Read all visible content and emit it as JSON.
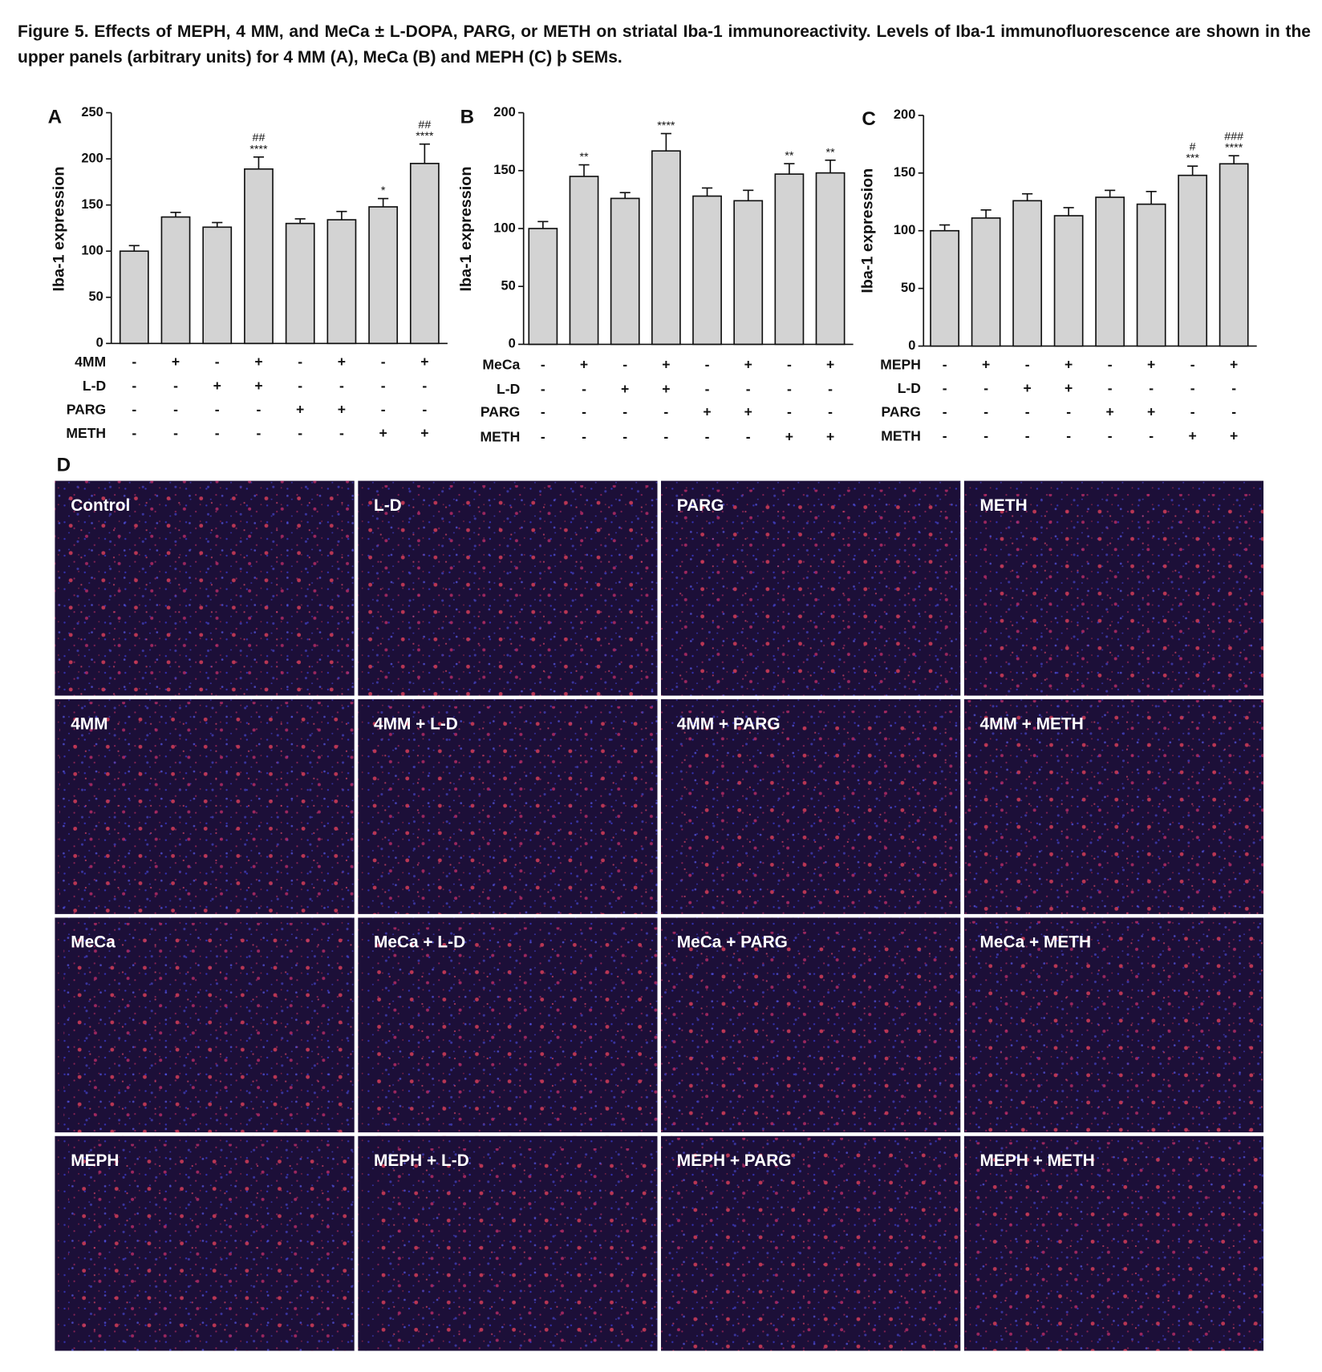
{
  "caption": "Figure 5. Effects of MEPH, 4 MM, and MeCa ± L-DOPA, PARG, or METH on striatal Iba-1 immunoreactivity. Levels of Iba-1 immunofluorescence are shown in the upper panels (arbitrary units) for 4 MM (A), MeCa (B) and MEPH (C) þ SEMs.",
  "chart_data": [
    {
      "type": "bar",
      "panel": "A",
      "ylabel": "Iba-1 expression",
      "color": "#d3d3d3",
      "values": [
        100,
        137,
        126,
        189,
        130,
        134,
        148,
        195
      ],
      "errors": [
        6,
        5,
        5,
        13,
        5,
        9,
        9,
        21
      ],
      "annotations": [
        null,
        null,
        null,
        [
          "##",
          "****"
        ],
        null,
        null,
        [
          "*"
        ],
        [
          "##",
          "****"
        ]
      ],
      "ylim": [
        0,
        250
      ],
      "yticks": [
        0,
        50,
        100,
        150,
        200,
        250
      ],
      "conditions": [
        {
          "name": "4MM",
          "marks": [
            "-",
            "+",
            "-",
            "+",
            "-",
            "+",
            "-",
            "+"
          ]
        },
        {
          "name": "L-D",
          "marks": [
            "-",
            "-",
            "+",
            "+",
            "-",
            "-",
            "-",
            "-"
          ]
        },
        {
          "name": "PARG",
          "marks": [
            "-",
            "-",
            "-",
            "-",
            "+",
            "+",
            "-",
            "-"
          ]
        },
        {
          "name": "METH",
          "marks": [
            "-",
            "-",
            "-",
            "-",
            "-",
            "-",
            "+",
            "+"
          ]
        }
      ]
    },
    {
      "type": "bar",
      "panel": "B",
      "ylabel": "Iba-1 expression",
      "color": "#d3d3d3",
      "values": [
        100,
        145,
        126,
        167,
        128,
        124,
        147,
        148
      ],
      "errors": [
        6,
        10,
        5,
        15,
        7,
        9,
        9,
        11
      ],
      "annotations": [
        null,
        [
          "**"
        ],
        null,
        [
          "****"
        ],
        null,
        null,
        [
          "**"
        ],
        [
          "**"
        ]
      ],
      "ylim": [
        0,
        200
      ],
      "yticks": [
        0,
        50,
        100,
        150,
        200
      ],
      "conditions": [
        {
          "name": "MeCa",
          "marks": [
            "-",
            "+",
            "-",
            "+",
            "-",
            "+",
            "-",
            "+"
          ]
        },
        {
          "name": "L-D",
          "marks": [
            "-",
            "-",
            "+",
            "+",
            "-",
            "-",
            "-",
            "-"
          ]
        },
        {
          "name": "PARG",
          "marks": [
            "-",
            "-",
            "-",
            "-",
            "+",
            "+",
            "-",
            "-"
          ]
        },
        {
          "name": "METH",
          "marks": [
            "-",
            "-",
            "-",
            "-",
            "-",
            "-",
            "+",
            "+"
          ]
        }
      ]
    },
    {
      "type": "bar",
      "panel": "C",
      "ylabel": "Iba-1 expression",
      "color": "#d3d3d3",
      "values": [
        100,
        111,
        126,
        113,
        129,
        123,
        148,
        158
      ],
      "errors": [
        5,
        7,
        6,
        7,
        6,
        11,
        8,
        7
      ],
      "annotations": [
        null,
        null,
        null,
        null,
        null,
        null,
        [
          "#",
          "***"
        ],
        [
          "###",
          "****"
        ]
      ],
      "ylim": [
        0,
        200
      ],
      "yticks": [
        0,
        50,
        100,
        150,
        200
      ],
      "conditions": [
        {
          "name": "MEPH",
          "marks": [
            "-",
            "+",
            "-",
            "+",
            "-",
            "+",
            "-",
            "+"
          ]
        },
        {
          "name": "L-D",
          "marks": [
            "-",
            "-",
            "+",
            "+",
            "-",
            "-",
            "-",
            "-"
          ]
        },
        {
          "name": "PARG",
          "marks": [
            "-",
            "-",
            "-",
            "-",
            "+",
            "+",
            "-",
            "-"
          ]
        },
        {
          "name": "METH",
          "marks": [
            "-",
            "-",
            "-",
            "-",
            "-",
            "-",
            "+",
            "+"
          ]
        }
      ]
    }
  ],
  "micrographs": {
    "label": "D",
    "panels": [
      "Control",
      "L-D",
      "PARG",
      "METH",
      "4MM",
      "4MM + L-D",
      "4MM + PARG",
      "4MM + METH",
      "MeCa",
      "MeCa + L-D",
      "MeCa + PARG",
      "MeCa + METH",
      "MEPH",
      "MEPH + L-D",
      "MEPH + PARG",
      "MEPH + METH"
    ]
  }
}
